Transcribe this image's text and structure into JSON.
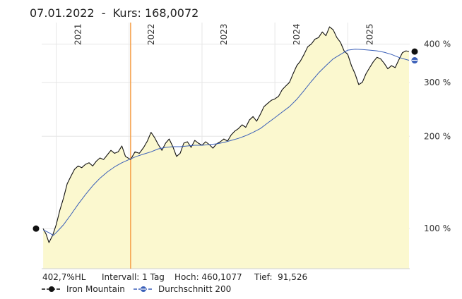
{
  "header": {
    "date": "07.01.2022",
    "separator": "  -  ",
    "price_label": "Kurs: 168,0072"
  },
  "stats": {
    "performance": "402,7%HL",
    "interval": "Intervall: 1 Tag",
    "high": "Hoch: 460,1077",
    "low": "Tief:  91,526"
  },
  "legend": {
    "series1": "Iron Mountain",
    "series2": "Durchschnitt 200"
  },
  "colors": {
    "price_line": "#111111",
    "average_line": "#3a5fb8",
    "area_fill": "#fbf8cf",
    "cursor_line": "#f5a04a",
    "grid": "#e6e6e6"
  },
  "chart_data": {
    "type": "line",
    "y_scale": "log",
    "ylim": [
      74,
      470
    ],
    "y_ticks": [
      {
        "value": 100,
        "label": "100 %"
      },
      {
        "value": 200,
        "label": "200 %"
      },
      {
        "value": 300,
        "label": "300 %"
      },
      {
        "value": 400,
        "label": "400 %"
      }
    ],
    "xlim": [
      2020.8,
      2025.85
    ],
    "x_ticks": [
      {
        "value": 2021,
        "label": "2021"
      },
      {
        "value": 2022,
        "label": "2022"
      },
      {
        "value": 2023,
        "label": "2023"
      },
      {
        "value": 2024,
        "label": "2024"
      },
      {
        "value": 2025,
        "label": "2025"
      }
    ],
    "cursor": {
      "x": 2022.02,
      "date": "07.01.2022",
      "value": 168.0072
    },
    "series": [
      {
        "name": "Iron Mountain",
        "points": [
          [
            2020.82,
            100
          ],
          [
            2020.86,
            96
          ],
          [
            2020.9,
            90
          ],
          [
            2020.95,
            95
          ],
          [
            2021.0,
            103
          ],
          [
            2021.05,
            115
          ],
          [
            2021.1,
            126
          ],
          [
            2021.15,
            140
          ],
          [
            2021.2,
            148
          ],
          [
            2021.25,
            156
          ],
          [
            2021.3,
            160
          ],
          [
            2021.35,
            158
          ],
          [
            2021.4,
            162
          ],
          [
            2021.45,
            164
          ],
          [
            2021.5,
            160
          ],
          [
            2021.55,
            166
          ],
          [
            2021.6,
            170
          ],
          [
            2021.65,
            168
          ],
          [
            2021.7,
            174
          ],
          [
            2021.75,
            180
          ],
          [
            2021.8,
            176
          ],
          [
            2021.85,
            178
          ],
          [
            2021.9,
            186
          ],
          [
            2021.95,
            172
          ],
          [
            2022.02,
            168
          ],
          [
            2022.08,
            178
          ],
          [
            2022.14,
            176
          ],
          [
            2022.2,
            184
          ],
          [
            2022.25,
            193
          ],
          [
            2022.3,
            206
          ],
          [
            2022.35,
            198
          ],
          [
            2022.4,
            188
          ],
          [
            2022.45,
            180
          ],
          [
            2022.5,
            190
          ],
          [
            2022.55,
            196
          ],
          [
            2022.6,
            185
          ],
          [
            2022.65,
            172
          ],
          [
            2022.7,
            176
          ],
          [
            2022.75,
            190
          ],
          [
            2022.8,
            192
          ],
          [
            2022.85,
            184
          ],
          [
            2022.9,
            194
          ],
          [
            2022.95,
            190
          ],
          [
            2023.0,
            187
          ],
          [
            2023.05,
            192
          ],
          [
            2023.1,
            188
          ],
          [
            2023.15,
            183
          ],
          [
            2023.2,
            189
          ],
          [
            2023.25,
            192
          ],
          [
            2023.3,
            196
          ],
          [
            2023.35,
            193
          ],
          [
            2023.4,
            202
          ],
          [
            2023.45,
            208
          ],
          [
            2023.5,
            212
          ],
          [
            2023.55,
            218
          ],
          [
            2023.6,
            214
          ],
          [
            2023.65,
            226
          ],
          [
            2023.7,
            232
          ],
          [
            2023.75,
            224
          ],
          [
            2023.8,
            236
          ],
          [
            2023.85,
            250
          ],
          [
            2023.9,
            256
          ],
          [
            2023.95,
            262
          ],
          [
            2024.0,
            265
          ],
          [
            2024.05,
            270
          ],
          [
            2024.1,
            284
          ],
          [
            2024.15,
            292
          ],
          [
            2024.2,
            300
          ],
          [
            2024.25,
            320
          ],
          [
            2024.3,
            340
          ],
          [
            2024.35,
            352
          ],
          [
            2024.4,
            370
          ],
          [
            2024.45,
            392
          ],
          [
            2024.5,
            400
          ],
          [
            2024.55,
            415
          ],
          [
            2024.6,
            420
          ],
          [
            2024.65,
            438
          ],
          [
            2024.7,
            426
          ],
          [
            2024.75,
            455
          ],
          [
            2024.8,
            445
          ],
          [
            2024.85,
            420
          ],
          [
            2024.9,
            405
          ],
          [
            2024.95,
            380
          ],
          [
            2025.0,
            370
          ],
          [
            2025.05,
            340
          ],
          [
            2025.1,
            320
          ],
          [
            2025.15,
            295
          ],
          [
            2025.2,
            300
          ],
          [
            2025.25,
            320
          ],
          [
            2025.3,
            335
          ],
          [
            2025.35,
            350
          ],
          [
            2025.4,
            362
          ],
          [
            2025.45,
            358
          ],
          [
            2025.5,
            346
          ],
          [
            2025.55,
            332
          ],
          [
            2025.6,
            340
          ],
          [
            2025.65,
            335
          ],
          [
            2025.7,
            355
          ],
          [
            2025.75,
            375
          ],
          [
            2025.8,
            380
          ],
          [
            2025.84,
            378
          ]
        ]
      },
      {
        "name": "Durchschnitt 200",
        "points": [
          [
            2020.82,
            99
          ],
          [
            2020.9,
            97
          ],
          [
            2020.96,
            95
          ],
          [
            2021.0,
            97
          ],
          [
            2021.1,
            103
          ],
          [
            2021.2,
            111
          ],
          [
            2021.3,
            120
          ],
          [
            2021.4,
            129
          ],
          [
            2021.5,
            138
          ],
          [
            2021.6,
            146
          ],
          [
            2021.7,
            153
          ],
          [
            2021.8,
            159
          ],
          [
            2021.9,
            164
          ],
          [
            2022.0,
            168
          ],
          [
            2022.1,
            172
          ],
          [
            2022.2,
            175
          ],
          [
            2022.3,
            178
          ],
          [
            2022.4,
            182
          ],
          [
            2022.5,
            184
          ],
          [
            2022.6,
            185
          ],
          [
            2022.7,
            185
          ],
          [
            2022.8,
            186
          ],
          [
            2022.9,
            187
          ],
          [
            2023.0,
            187
          ],
          [
            2023.1,
            188
          ],
          [
            2023.2,
            189
          ],
          [
            2023.3,
            191
          ],
          [
            2023.4,
            194
          ],
          [
            2023.5,
            197
          ],
          [
            2023.6,
            201
          ],
          [
            2023.7,
            206
          ],
          [
            2023.8,
            212
          ],
          [
            2023.9,
            221
          ],
          [
            2024.0,
            230
          ],
          [
            2024.1,
            240
          ],
          [
            2024.2,
            250
          ],
          [
            2024.3,
            264
          ],
          [
            2024.4,
            282
          ],
          [
            2024.5,
            302
          ],
          [
            2024.6,
            322
          ],
          [
            2024.7,
            340
          ],
          [
            2024.8,
            358
          ],
          [
            2024.9,
            370
          ],
          [
            2025.0,
            382
          ],
          [
            2025.1,
            385
          ],
          [
            2025.2,
            384
          ],
          [
            2025.3,
            382
          ],
          [
            2025.4,
            380
          ],
          [
            2025.5,
            376
          ],
          [
            2025.6,
            370
          ],
          [
            2025.7,
            362
          ],
          [
            2025.8,
            356
          ],
          [
            2025.84,
            354
          ]
        ]
      }
    ],
    "markers": {
      "start_value": 100,
      "end_price": 378,
      "end_average": 354
    }
  }
}
